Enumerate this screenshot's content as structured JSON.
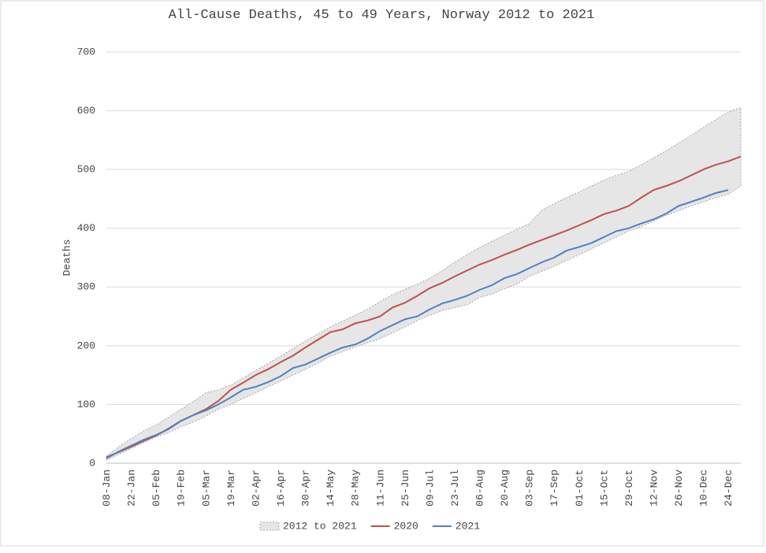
{
  "chart_data": {
    "type": "line",
    "title": "All-Cause Deaths, 45 to 49 Years, Norway 2012 to 2021",
    "y_label": "Deaths",
    "categories": [
      "08-Jan",
      null,
      "22-Jan",
      null,
      "05-Feb",
      null,
      "19-Feb",
      null,
      "05-Mar",
      null,
      "19-Mar",
      null,
      "02-Apr",
      null,
      "16-Apr",
      null,
      "30-Apr",
      null,
      "14-May",
      null,
      "28-May",
      null,
      "11-Jun",
      null,
      "25-Jun",
      null,
      "09-Jul",
      null,
      "23-Jul",
      null,
      "06-Aug",
      null,
      "20-Aug",
      null,
      "03-Sep",
      null,
      "17-Sep",
      null,
      "01-Oct",
      null,
      "15-Oct",
      null,
      "29-Oct",
      null,
      "12-Nov",
      null,
      "26-Nov",
      null,
      "10-Dec",
      null,
      "24-Dec",
      null
    ],
    "series": [
      {
        "name": "2012 to 2021",
        "kind": "band",
        "color": "#e6e6e6",
        "high": [
          12,
          28,
          42,
          55,
          65,
          78,
          92,
          105,
          120,
          125,
          133,
          145,
          158,
          170,
          182,
          195,
          208,
          220,
          232,
          242,
          252,
          262,
          275,
          287,
          296,
          305,
          315,
          328,
          342,
          355,
          367,
          378,
          388,
          398,
          408,
          430,
          442,
          452,
          462,
          472,
          482,
          490,
          497,
          508,
          520,
          532,
          545,
          558,
          572,
          585,
          598,
          605
        ],
        "low": [
          5,
          15,
          25,
          35,
          45,
          52,
          62,
          70,
          80,
          92,
          100,
          110,
          120,
          130,
          140,
          150,
          160,
          170,
          182,
          190,
          198,
          205,
          212,
          222,
          232,
          243,
          252,
          260,
          265,
          270,
          282,
          288,
          297,
          305,
          318,
          327,
          335,
          345,
          355,
          365,
          375,
          385,
          395,
          403,
          412,
          422,
          430,
          438,
          445,
          452,
          458,
          472
        ]
      },
      {
        "name": "2020",
        "color": "#c0504d",
        "values": [
          10,
          19,
          28,
          38,
          47,
          59,
          72,
          82,
          92,
          106,
          125,
          137,
          150,
          160,
          172,
          183,
          197,
          210,
          223,
          228,
          238,
          243,
          250,
          265,
          273,
          285,
          298,
          307,
          318,
          328,
          338,
          346,
          355,
          363,
          372,
          380,
          388,
          396,
          405,
          414,
          424,
          430,
          438,
          452,
          465,
          472,
          480,
          490,
          500,
          508,
          514,
          522
        ]
      },
      {
        "name": "2021",
        "color": "#4f81bd",
        "values": [
          8,
          20,
          30,
          40,
          48,
          58,
          72,
          82,
          90,
          100,
          112,
          125,
          130,
          138,
          148,
          162,
          168,
          178,
          188,
          197,
          202,
          212,
          225,
          235,
          245,
          250,
          262,
          272,
          278,
          285,
          295,
          303,
          315,
          322,
          332,
          342,
          350,
          362,
          368,
          375,
          385,
          395,
          400,
          408,
          415,
          425,
          438,
          445,
          452,
          460,
          465,
          null
        ]
      }
    ],
    "ylim": [
      0,
      700
    ],
    "yticks": [
      0,
      100,
      200,
      300,
      400,
      500,
      600,
      700
    ],
    "grid": true,
    "legend": "bottom"
  }
}
